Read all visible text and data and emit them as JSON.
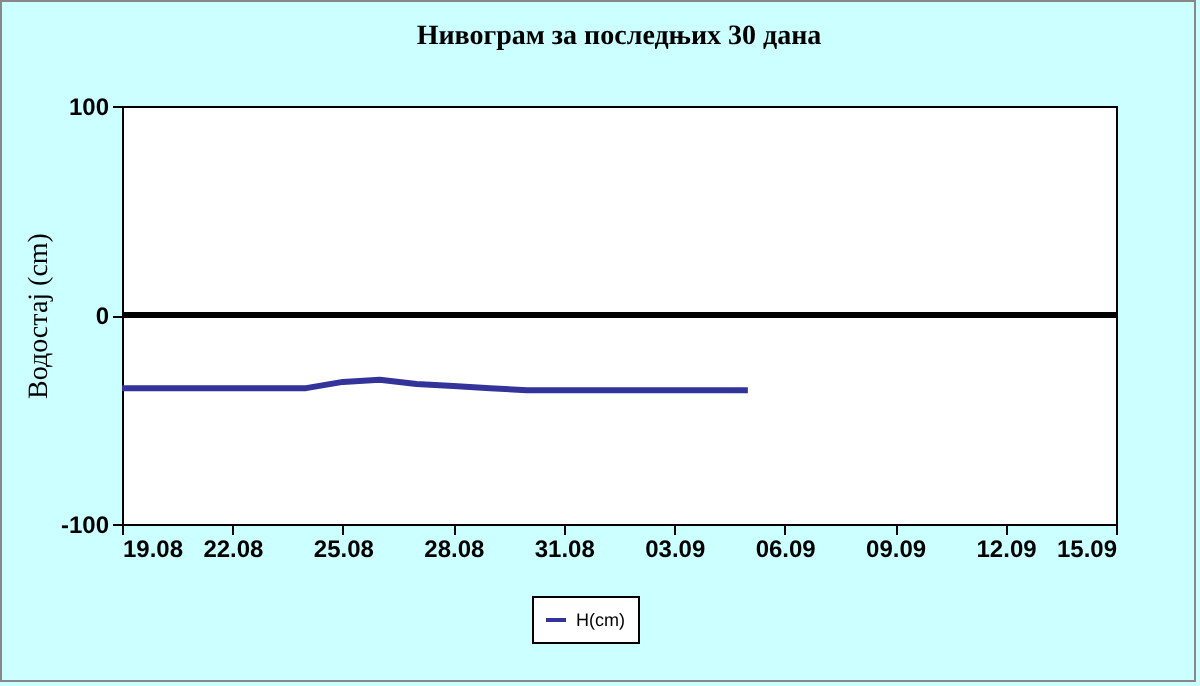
{
  "chart_data": {
    "type": "line",
    "title": "Нивограм за последњих 30 дана",
    "ylabel": "Водостај (cm)",
    "x": [
      "--08-19",
      "--08-20",
      "--08-21",
      "--08-22",
      "--08-23",
      "--08-24",
      "--08-25",
      "--08-26",
      "--08-27",
      "--08-28",
      "--08-29",
      "--08-30",
      "--08-31",
      "--09-01",
      "--09-02",
      "--09-03",
      "--09-04",
      "--09-05"
    ],
    "series": [
      {
        "name": "H(cm)",
        "color": "#333399",
        "values": [
          -35,
          -35,
          -35,
          -35,
          -35,
          -35,
          -32,
          -31,
          -33,
          -34,
          -35,
          -36,
          -36,
          -36,
          -36,
          -36,
          -36,
          -36
        ]
      }
    ],
    "xlim": [
      "--08-19",
      "--09-15"
    ],
    "xticks": [
      {
        "value": "--08-19",
        "label": "19.08"
      },
      {
        "value": "--08-22",
        "label": "22.08"
      },
      {
        "value": "--08-25",
        "label": "25.08"
      },
      {
        "value": "--08-28",
        "label": "28.08"
      },
      {
        "value": "--08-31",
        "label": "31.08"
      },
      {
        "value": "--09-03",
        "label": "03.09"
      },
      {
        "value": "--09-06",
        "label": "06.09"
      },
      {
        "value": "--09-09",
        "label": "09.09"
      },
      {
        "value": "--09-12",
        "label": "12.09"
      },
      {
        "value": "--09-15",
        "label": "15.09"
      }
    ],
    "ylim": [
      -100,
      100
    ],
    "yticks": [
      -100,
      0,
      100
    ],
    "ref_lines": [
      {
        "axis": "y",
        "value": 0,
        "color": "#000000"
      }
    ],
    "grid": false,
    "legend": "bottom",
    "line_style": "solid",
    "marker": "none"
  }
}
